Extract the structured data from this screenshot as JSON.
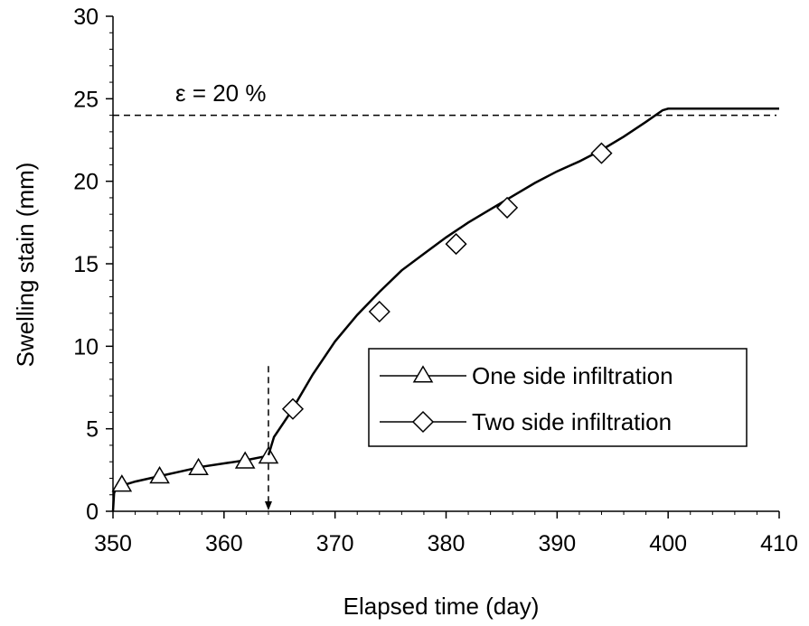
{
  "chart_data": {
    "type": "line",
    "xlabel": "Elapsed time (day)",
    "ylabel": "Swelling stain (mm)",
    "xlim": [
      350,
      410
    ],
    "ylim": [
      0,
      30
    ],
    "x_ticks": [
      350,
      360,
      370,
      380,
      390,
      400,
      410
    ],
    "y_ticks": [
      0,
      5,
      10,
      15,
      20,
      25,
      30
    ],
    "grid": false,
    "legend_position": "right",
    "annotation": {
      "text": "ε = 20 %",
      "threshold_y": 24,
      "vertical_marker_x": 364
    },
    "series": [
      {
        "name": "One side infiltration",
        "marker": "triangle",
        "x": [
          350.0,
          350.1,
          350.3,
          351.0,
          352.0,
          354.0,
          356.0,
          358.0,
          360.0,
          362.0,
          363.5,
          364.0
        ],
        "y": [
          0.0,
          1.1,
          1.4,
          1.6,
          1.8,
          2.1,
          2.4,
          2.7,
          2.9,
          3.1,
          3.3,
          3.4
        ],
        "marker_x": [
          350.8,
          354.2,
          357.7,
          361.9,
          364.0
        ],
        "marker_y": [
          1.6,
          2.1,
          2.6,
          3.0,
          3.3
        ]
      },
      {
        "name": "Two side infiltration",
        "marker": "diamond",
        "x": [
          364.0,
          364.5,
          366.0,
          368.0,
          370.0,
          372.0,
          374.0,
          376.0,
          378.0,
          380.0,
          382.0,
          384.0,
          386.0,
          388.0,
          390.0,
          392.0,
          394.0,
          396.0,
          398.0,
          399.5,
          400.0,
          405.0,
          410.0
        ],
        "y": [
          3.4,
          4.5,
          6.0,
          8.3,
          10.3,
          11.9,
          13.3,
          14.6,
          15.6,
          16.6,
          17.5,
          18.3,
          19.1,
          19.9,
          20.6,
          21.2,
          21.9,
          22.7,
          23.6,
          24.3,
          24.4,
          24.4,
          24.4
        ],
        "marker_x": [
          366.2,
          374.0,
          380.9,
          385.5,
          394.0
        ],
        "marker_y": [
          6.2,
          12.1,
          16.2,
          18.4,
          21.7
        ]
      }
    ]
  },
  "colors": {
    "line": "#000000",
    "background": "#ffffff"
  }
}
